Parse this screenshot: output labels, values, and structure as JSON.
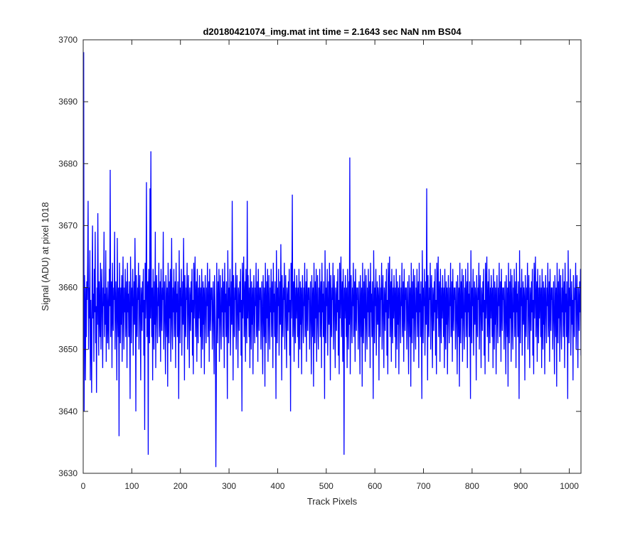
{
  "chart_data": {
    "type": "line",
    "title": "d20180421074_img.mat int time = 2.1643 sec  NaN nm BS04",
    "xlabel": "Track Pixels",
    "ylabel": "Signal (ADU) at pixel 1018",
    "xlim": [
      0,
      1024
    ],
    "ylim": [
      3630,
      3700
    ],
    "x_ticks": [
      0,
      100,
      200,
      300,
      400,
      500,
      600,
      700,
      800,
      900,
      1000
    ],
    "y_ticks": [
      3630,
      3640,
      3650,
      3660,
      3670,
      3680,
      3690,
      3700
    ],
    "grid": false,
    "series": [
      {
        "color": "#0000ff",
        "x_start": 1,
        "x_end": 1024,
        "noise_mean": 3656,
        "noise_range": [
          3631,
          3682
        ],
        "values": [
          3698,
          3640,
          3662,
          3657,
          3645,
          3660,
          3652,
          3661,
          3658,
          3664,
          3674,
          3650,
          3660,
          3655,
          3666,
          3645,
          3658,
          3652,
          3643,
          3661,
          3670,
          3655,
          3659,
          3648,
          3663,
          3656,
          3669,
          3651,
          3657,
          3643,
          3660,
          3654,
          3672,
          3658,
          3649,
          3661,
          3656,
          3652,
          3664,
          3650,
          3658,
          3663,
          3655,
          3647,
          3660,
          3657,
          3669,
          3652,
          3659,
          3654,
          3666,
          3648,
          3660,
          3656,
          3651,
          3661,
          3655,
          3650,
          3663,
          3657,
          3679,
          3652,
          3658,
          3661,
          3647,
          3664,
          3656,
          3653,
          3660,
          3658,
          3669,
          3650,
          3656,
          3661,
          3655,
          3645,
          3668,
          3657,
          3652,
          3660,
          3636,
          3664,
          3657,
          3651,
          3660,
          3654,
          3662,
          3648,
          3658,
          3665,
          3655,
          3650,
          3660,
          3656,
          3663,
          3652,
          3657,
          3661,
          3647,
          3664,
          3656,
          3659,
          3652,
          3661,
          3655,
          3642,
          3665,
          3658,
          3651,
          3660,
          3657,
          3663,
          3649,
          3656,
          3661,
          3654,
          3668,
          3659,
          3640,
          3662,
          3656,
          3652,
          3660,
          3658,
          3664,
          3650,
          3657,
          3662,
          3655,
          3645,
          3660,
          3658,
          3653,
          3661,
          3656,
          3663,
          3649,
          3658,
          3637,
          3664,
          3655,
          3660,
          3677,
          3652,
          3658,
          3661,
          3633,
          3663,
          3657,
          3651,
          3676,
          3655,
          3682,
          3658,
          3652,
          3660,
          3645,
          3663,
          3656,
          3650,
          3661,
          3654,
          3669,
          3647,
          3658,
          3662,
          3655,
          3651,
          3660,
          3657,
          3664,
          3652,
          3656,
          3661,
          3648,
          3663,
          3657,
          3653,
          3660,
          3658,
          3669,
          3650,
          3656,
          3661,
          3654,
          3646,
          3662,
          3658,
          3652,
          3660,
          3644,
          3664,
          3656,
          3651,
          3661,
          3655,
          3663,
          3648,
          3657,
          3668,
          3654,
          3650,
          3660,
          3656,
          3663,
          3652,
          3658,
          3661,
          3647,
          3664,
          3656,
          3659,
          3652,
          3661,
          3655,
          3642,
          3666,
          3658,
          3651,
          3660,
          3657,
          3663,
          3649,
          3656,
          3661,
          3654,
          3668,
          3658,
          3645,
          3662,
          3656,
          3652,
          3660,
          3658,
          3664,
          3650,
          3657,
          3662,
          3655,
          3647,
          3660,
          3658,
          3653,
          3661,
          3656,
          3663,
          3649,
          3658,
          3646,
          3664,
          3655,
          3660,
          3665,
          3652,
          3658,
          3661,
          3648,
          3663,
          3657,
          3651,
          3660,
          3655,
          3662,
          3658,
          3652,
          3660,
          3647,
          3663,
          3656,
          3650,
          3661,
          3654,
          3660,
          3646,
          3658,
          3662,
          3655,
          3651,
          3660,
          3657,
          3664,
          3652,
          3656,
          3661,
          3648,
          3663,
          3657,
          3653,
          3660,
          3658,
          3660,
          3650,
          3656,
          3661,
          3654,
          3646,
          3662,
          3658,
          3652,
          3631,
          3644,
          3664,
          3656,
          3651,
          3661,
          3655,
          3663,
          3648,
          3657,
          3662,
          3654,
          3650,
          3660,
          3656,
          3663,
          3652,
          3658,
          3661,
          3647,
          3664,
          3656,
          3659,
          3652,
          3661,
          3655,
          3642,
          3666,
          3658,
          3651,
          3660,
          3657,
          3663,
          3649,
          3656,
          3661,
          3654,
          3674,
          3658,
          3645,
          3662,
          3656,
          3652,
          3660,
          3658,
          3664,
          3650,
          3657,
          3662,
          3655,
          3647,
          3660,
          3658,
          3653,
          3661,
          3656,
          3663,
          3649,
          3658,
          3640,
          3664,
          3655,
          3660,
          3665,
          3652,
          3658,
          3661,
          3648,
          3663,
          3657,
          3651,
          3674,
          3655,
          3662,
          3658,
          3652,
          3660,
          3647,
          3663,
          3656,
          3650,
          3661,
          3654,
          3660,
          3646,
          3658,
          3662,
          3655,
          3651,
          3660,
          3657,
          3664,
          3652,
          3656,
          3661,
          3648,
          3663,
          3657,
          3653,
          3660,
          3658,
          3660,
          3650,
          3656,
          3661,
          3654,
          3646,
          3662,
          3658,
          3652,
          3660,
          3644,
          3664,
          3656,
          3651,
          3661,
          3655,
          3663,
          3648,
          3657,
          3662,
          3654,
          3650,
          3660,
          3656,
          3663,
          3652,
          3658,
          3661,
          3647,
          3664,
          3656,
          3659,
          3652,
          3661,
          3655,
          3642,
          3666,
          3658,
          3651,
          3660,
          3657,
          3663,
          3649,
          3656,
          3661,
          3654,
          3667,
          3658,
          3645,
          3662,
          3656,
          3652,
          3660,
          3658,
          3664,
          3650,
          3657,
          3662,
          3655,
          3647,
          3660,
          3658,
          3653,
          3661,
          3656,
          3663,
          3649,
          3658,
          3640,
          3664,
          3655,
          3660,
          3675,
          3652,
          3658,
          3661,
          3648,
          3663,
          3657,
          3651,
          3660,
          3655,
          3662,
          3658,
          3652,
          3660,
          3647,
          3663,
          3656,
          3650,
          3661,
          3654,
          3660,
          3646,
          3658,
          3662,
          3655,
          3651,
          3660,
          3657,
          3664,
          3652,
          3656,
          3661,
          3648,
          3663,
          3657,
          3653,
          3660,
          3658,
          3660,
          3650,
          3656,
          3661,
          3654,
          3646,
          3662,
          3658,
          3652,
          3660,
          3644,
          3664,
          3656,
          3651,
          3661,
          3655,
          3663,
          3648,
          3657,
          3662,
          3654,
          3650,
          3660,
          3656,
          3663,
          3652,
          3658,
          3661,
          3647,
          3664,
          3656,
          3659,
          3652,
          3661,
          3655,
          3642,
          3666,
          3658,
          3651,
          3660,
          3657,
          3663,
          3649,
          3656,
          3661,
          3654,
          3664,
          3658,
          3645,
          3662,
          3656,
          3652,
          3660,
          3658,
          3664,
          3650,
          3657,
          3662,
          3655,
          3647,
          3660,
          3658,
          3653,
          3661,
          3656,
          3663,
          3649,
          3658,
          3646,
          3664,
          3655,
          3660,
          3665,
          3652,
          3658,
          3661,
          3648,
          3663,
          3657,
          3633,
          3660,
          3655,
          3662,
          3658,
          3652,
          3660,
          3647,
          3663,
          3656,
          3650,
          3661,
          3654,
          3681,
          3646,
          3658,
          3662,
          3655,
          3651,
          3660,
          3657,
          3664,
          3652,
          3656,
          3661,
          3648,
          3663,
          3657,
          3653,
          3660,
          3658,
          3660,
          3650,
          3656,
          3661,
          3654,
          3646,
          3662,
          3658,
          3652,
          3660,
          3644,
          3664,
          3656,
          3651,
          3661,
          3655,
          3663,
          3648,
          3657,
          3662,
          3654,
          3650,
          3660,
          3656,
          3663,
          3652,
          3658,
          3661,
          3647,
          3664,
          3656,
          3659,
          3652,
          3661,
          3655,
          3642,
          3666,
          3658,
          3651,
          3660,
          3657,
          3663,
          3649,
          3656,
          3661,
          3654,
          3660,
          3658,
          3645,
          3662,
          3656,
          3652,
          3660,
          3658,
          3664,
          3650,
          3657,
          3662,
          3655,
          3647,
          3660,
          3658,
          3653,
          3661,
          3656,
          3663,
          3649,
          3658,
          3646,
          3664,
          3655,
          3660,
          3665,
          3652,
          3658,
          3661,
          3648,
          3663,
          3657,
          3651,
          3660,
          3655,
          3662,
          3658,
          3652,
          3660,
          3647,
          3663,
          3656,
          3650,
          3661,
          3654,
          3660,
          3646,
          3658,
          3662,
          3655,
          3651,
          3660,
          3657,
          3664,
          3652,
          3656,
          3661,
          3648,
          3663,
          3657,
          3653,
          3660,
          3658,
          3660,
          3650,
          3656,
          3661,
          3654,
          3646,
          3662,
          3658,
          3652,
          3660,
          3644,
          3664,
          3656,
          3651,
          3661,
          3655,
          3663,
          3648,
          3657,
          3662,
          3654,
          3650,
          3660,
          3656,
          3663,
          3652,
          3658,
          3661,
          3647,
          3664,
          3656,
          3659,
          3652,
          3661,
          3655,
          3642,
          3666,
          3658,
          3651,
          3660,
          3657,
          3663,
          3649,
          3656,
          3661,
          3654,
          3676,
          3658,
          3645,
          3662,
          3656,
          3652,
          3660,
          3658,
          3664,
          3650,
          3657,
          3662,
          3655,
          3647,
          3660,
          3658,
          3653,
          3661,
          3656,
          3663,
          3649,
          3658,
          3646,
          3664,
          3655,
          3660,
          3665,
          3652,
          3658,
          3661,
          3648,
          3663,
          3657,
          3651,
          3660,
          3655,
          3662,
          3658,
          3652,
          3660,
          3647,
          3663,
          3656,
          3650,
          3661,
          3654,
          3660,
          3646,
          3658,
          3662,
          3655,
          3651,
          3660,
          3657,
          3664,
          3652,
          3656,
          3661,
          3648,
          3663,
          3657,
          3653,
          3660,
          3658,
          3660,
          3650,
          3656,
          3661,
          3654,
          3646,
          3662,
          3658,
          3652,
          3660,
          3644,
          3664,
          3656,
          3651,
          3661,
          3655,
          3663,
          3648,
          3657,
          3662,
          3654,
          3650,
          3660,
          3656,
          3663,
          3652,
          3658,
          3661,
          3647,
          3664,
          3656,
          3659,
          3652,
          3661,
          3655,
          3642,
          3666,
          3658,
          3651,
          3660,
          3657,
          3663,
          3649,
          3656,
          3661,
          3654,
          3660,
          3658,
          3645,
          3662,
          3656,
          3652,
          3660,
          3658,
          3664,
          3650,
          3657,
          3662,
          3655,
          3647,
          3660,
          3658,
          3653,
          3661,
          3656,
          3663,
          3649,
          3658,
          3646,
          3664,
          3655,
          3660,
          3665,
          3652,
          3658,
          3661,
          3648,
          3663,
          3657,
          3651,
          3660,
          3655,
          3662,
          3658,
          3652,
          3660,
          3647,
          3663,
          3656,
          3650,
          3661,
          3654,
          3660,
          3646,
          3658,
          3662,
          3655,
          3651,
          3660,
          3657,
          3664,
          3652,
          3656,
          3661,
          3648,
          3663,
          3657,
          3653,
          3660,
          3658,
          3660,
          3650,
          3656,
          3661,
          3654,
          3646,
          3662,
          3658,
          3652,
          3660,
          3644,
          3664,
          3656,
          3651,
          3661,
          3655,
          3663,
          3648,
          3657,
          3662,
          3654,
          3650,
          3660,
          3656,
          3663,
          3652,
          3658,
          3661,
          3647,
          3664,
          3656,
          3659,
          3652,
          3661,
          3655,
          3642,
          3666,
          3658,
          3651,
          3660,
          3657,
          3663,
          3649,
          3656,
          3661,
          3654,
          3660,
          3658,
          3645,
          3662,
          3656,
          3652,
          3660,
          3658,
          3664,
          3650,
          3657,
          3662,
          3655,
          3647,
          3660,
          3658,
          3653,
          3661,
          3656,
          3663,
          3649,
          3658,
          3646,
          3664,
          3655,
          3660,
          3665,
          3652,
          3658,
          3661,
          3648,
          3663,
          3657,
          3651,
          3660,
          3655,
          3662,
          3658,
          3652,
          3660,
          3647,
          3663,
          3656,
          3650,
          3661,
          3654,
          3660,
          3646,
          3658,
          3662,
          3655,
          3651,
          3660,
          3657,
          3664,
          3652,
          3656,
          3661,
          3648,
          3663,
          3657,
          3653,
          3660,
          3658,
          3660,
          3650,
          3656,
          3661,
          3654,
          3646,
          3662,
          3658,
          3652,
          3660,
          3644,
          3664,
          3656,
          3651,
          3661,
          3655,
          3663,
          3648,
          3657,
          3662,
          3654,
          3650,
          3660,
          3656,
          3663,
          3652,
          3658,
          3661,
          3647,
          3664,
          3656,
          3659,
          3652,
          3661,
          3655,
          3642,
          3666,
          3658,
          3651,
          3660,
          3657,
          3663,
          3649,
          3656,
          3661,
          3654,
          3658,
          3645,
          3662,
          3656,
          3652,
          3660,
          3658,
          3664,
          3650,
          3657,
          3662,
          3655,
          3647,
          3660,
          3658,
          3653,
          3661,
          3656,
          3663,
          3649
        ]
      }
    ]
  }
}
